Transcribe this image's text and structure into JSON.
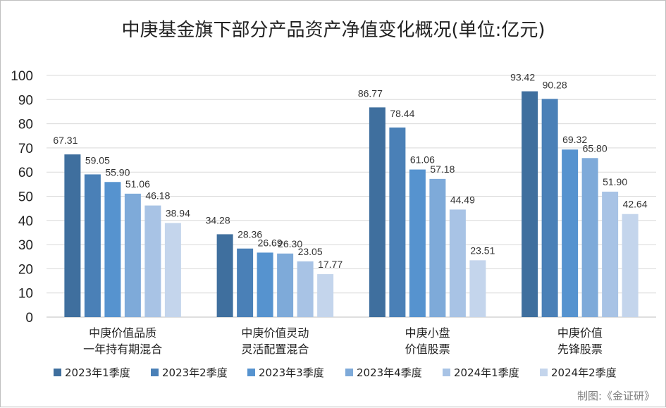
{
  "chart_data": {
    "type": "bar",
    "title": "中庚基金旗下部分产品资产净值变化概况(单位:亿元)",
    "xlabel": "",
    "ylabel": "",
    "ylim": [
      0,
      100
    ],
    "yticks": [
      "0",
      "10",
      "20",
      "30",
      "40",
      "50",
      "60",
      "70",
      "80",
      "90",
      "100"
    ],
    "grid": true,
    "legend_position": "bottom",
    "categories": [
      [
        "中庚价值品质",
        "一年持有期混合"
      ],
      [
        "中庚价值灵动",
        "灵活配置混合"
      ],
      [
        "中庚小盘",
        "价值股票"
      ],
      [
        "中庚价值",
        "先锋股票"
      ]
    ],
    "series": [
      {
        "name": "2023年1季度",
        "color": "#3f6f9e",
        "values": [
          67.31,
          34.28,
          86.77,
          93.42
        ],
        "labels": [
          "67.31",
          "34.28",
          "86.77",
          "93.42"
        ]
      },
      {
        "name": "2023年2季度",
        "color": "#4a80b7",
        "values": [
          59.05,
          28.36,
          78.44,
          90.28
        ],
        "labels": [
          "59.05",
          "28.36",
          "78.44",
          "90.28"
        ]
      },
      {
        "name": "2023年3季度",
        "color": "#5693cf",
        "values": [
          55.9,
          26.69,
          61.06,
          69.32
        ],
        "labels": [
          "55.90",
          "26.69",
          "61.06",
          "69.32"
        ]
      },
      {
        "name": "2023年4季度",
        "color": "#7eaad9",
        "values": [
          51.06,
          26.3,
          57.18,
          65.8
        ],
        "labels": [
          "51.06",
          "26.30",
          "57.18",
          "65.80"
        ]
      },
      {
        "name": "2024年1季度",
        "color": "#a8c3e5",
        "values": [
          46.18,
          23.05,
          44.49,
          51.9
        ],
        "labels": [
          "46.18",
          "23.05",
          "44.49",
          "51.90"
        ]
      },
      {
        "name": "2024年2季度",
        "color": "#c4d5ec",
        "values": [
          38.94,
          17.77,
          23.51,
          42.64
        ],
        "labels": [
          "38.94",
          "17.77",
          "23.51",
          "42.64"
        ]
      }
    ]
  },
  "source_note": "制图:《金证研》"
}
